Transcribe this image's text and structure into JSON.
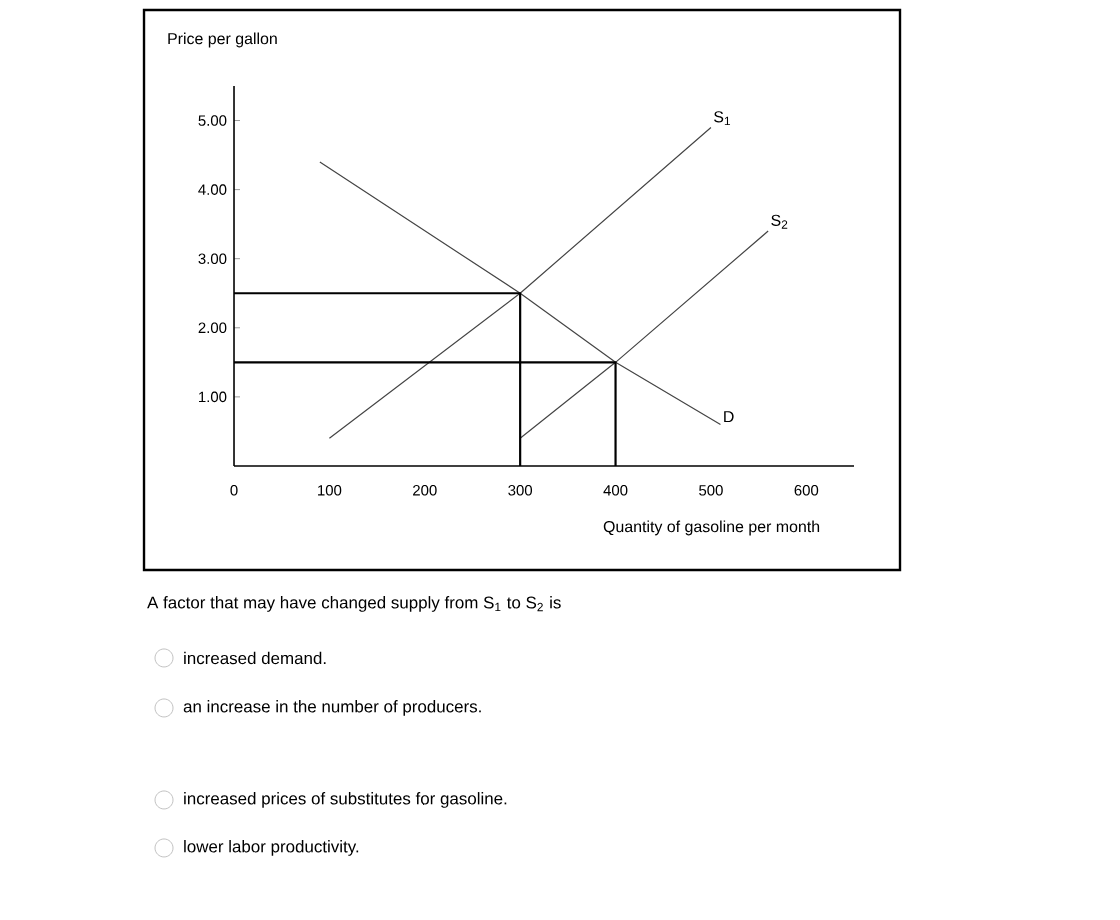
{
  "chart_data": {
    "type": "line",
    "ylabel": "Price per gallon",
    "xlabel": "Quantity of gasoline per month",
    "xlim": [
      0,
      650
    ],
    "ylim": [
      0,
      5.5
    ],
    "xticks": [
      0,
      100,
      200,
      300,
      400,
      500,
      600
    ],
    "yticks": [
      {
        "value": 1,
        "label": "1.00"
      },
      {
        "value": 2,
        "label": "2.00"
      },
      {
        "value": 3,
        "label": "3.00"
      },
      {
        "value": 4,
        "label": "4.00"
      },
      {
        "value": 5,
        "label": "5.00"
      }
    ],
    "series": [
      {
        "name": "S$_{1}$",
        "color": "#444444",
        "x": [
          100,
          300,
          500
        ],
        "values": [
          0.4,
          2.5,
          4.9
        ]
      },
      {
        "name": "S$_{2}$",
        "color": "#444444",
        "x": [
          300,
          400,
          560
        ],
        "values": [
          0.4,
          1.5,
          3.4
        ]
      },
      {
        "name": "D",
        "color": "#444444",
        "x": [
          90,
          300,
          400,
          510
        ],
        "values": [
          4.4,
          2.5,
          1.5,
          0.6
        ]
      },
      {
        "color": "#000000",
        "x": [
          0,
          300,
          300
        ],
        "values": [
          2.5,
          2.5,
          0
        ]
      },
      {
        "color": "#000000",
        "x": [
          0,
          400,
          400
        ],
        "values": [
          1.5,
          1.5,
          0
        ]
      }
    ],
    "annotations": [
      "A factor that may have changed supply from S$_{1}$ to S$_{2}$ is",
      "increased demand.",
      "an increase in the number of producers.",
      "increased prices of substitutes for gasoline.",
      "lower labor productivity."
    ],
    "marker": "none",
    "line_style": "solid",
    "grid": false,
    "legend": false
  }
}
